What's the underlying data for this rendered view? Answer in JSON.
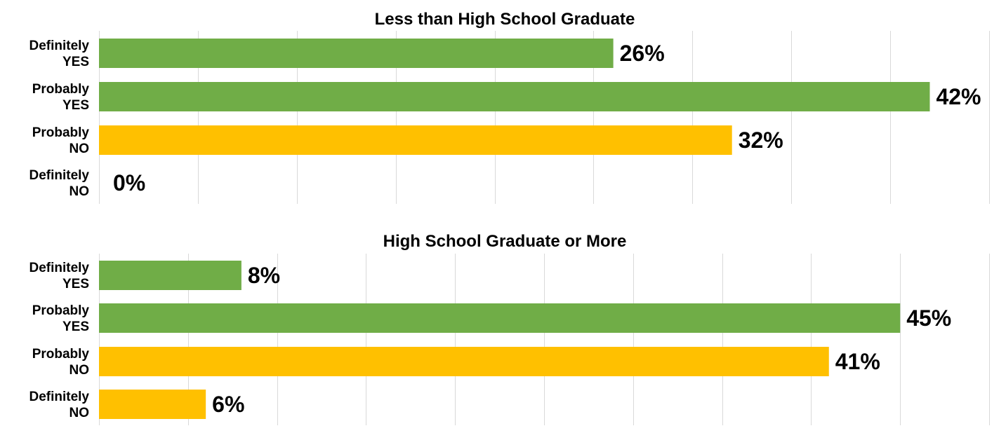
{
  "colors": {
    "yes": "#70AD47",
    "no": "#FFC000",
    "grid": "#D9D9D9"
  },
  "chart_data": [
    {
      "type": "bar",
      "orientation": "horizontal",
      "title": "Less than High School Graduate",
      "categories": [
        [
          "Definitely",
          "YES"
        ],
        [
          "Probably",
          "YES"
        ],
        [
          "Probably",
          "NO"
        ],
        [
          "Definitely",
          "NO"
        ]
      ],
      "values": [
        26,
        42,
        32,
        0
      ],
      "value_labels": [
        "26%",
        "42%",
        "32%",
        "0%"
      ],
      "bar_colors": [
        "#70AD47",
        "#70AD47",
        "#FFC000",
        "#FFC000"
      ],
      "xlim": [
        0,
        45
      ],
      "grid": true,
      "legend": "none"
    },
    {
      "type": "bar",
      "orientation": "horizontal",
      "title": "High School Graduate or More",
      "categories": [
        [
          "Definitely",
          "YES"
        ],
        [
          "Probably",
          "YES"
        ],
        [
          "Probably",
          "NO"
        ],
        [
          "Definitely",
          "NO"
        ]
      ],
      "values": [
        8,
        45,
        41,
        6
      ],
      "value_labels": [
        "8%",
        "45%",
        "41%",
        "6%"
      ],
      "bar_colors": [
        "#70AD47",
        "#70AD47",
        "#FFC000",
        "#FFC000"
      ],
      "xlim": [
        0,
        50
      ],
      "grid": true,
      "legend": "none"
    }
  ]
}
